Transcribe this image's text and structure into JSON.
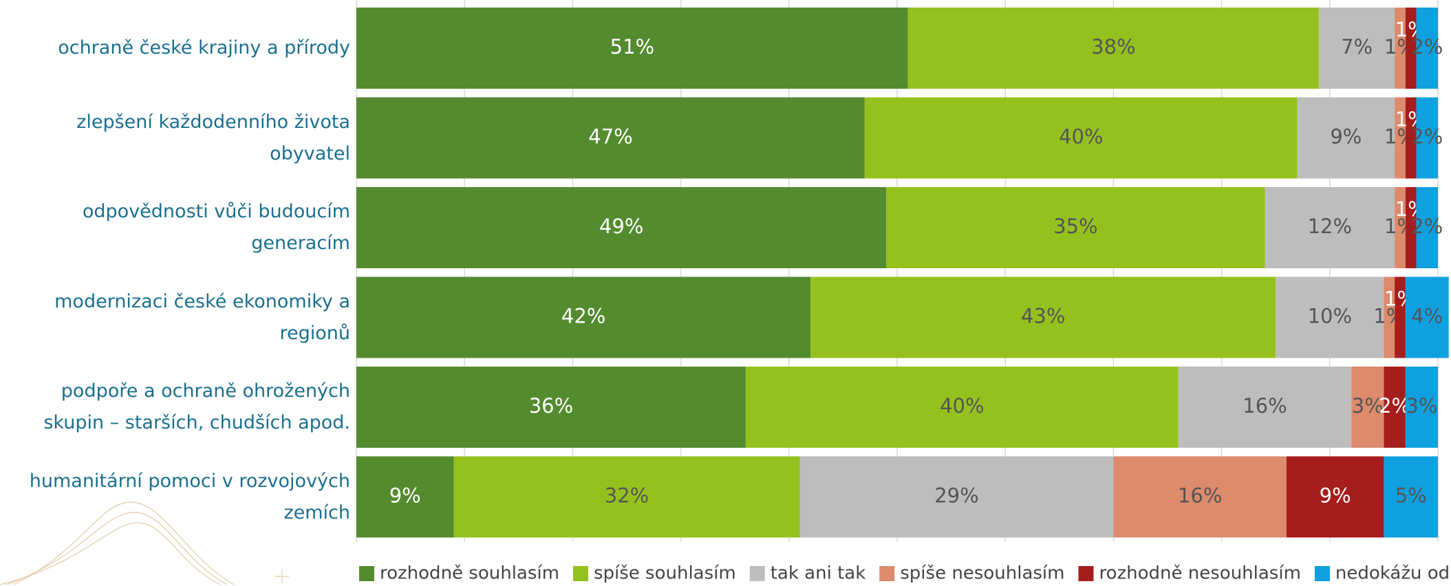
{
  "chart_data": {
    "type": "stacked-barh",
    "categories": [
      "ochraně české krajiny a přírody",
      "zlepšení každodenního života obyvatel",
      "odpovědnosti vůči budoucím generacím",
      "modernizaci české ekonomiky a regionů",
      "podpoře a ochraně ohrožených skupin – starších, chudších apod.",
      "humanitární pomoci v rozvojových zemích"
    ],
    "series": [
      {
        "name": "rozhodně souhlasím",
        "color": "#548b2f",
        "values": [
          51,
          47,
          49,
          42,
          36,
          9
        ],
        "value_labels": [
          "51%",
          "47%",
          "49%",
          "42%",
          "36%",
          "9%"
        ]
      },
      {
        "name": "spíše souhlasím",
        "color": "#95c11f",
        "values": [
          38,
          40,
          35,
          43,
          40,
          32
        ],
        "value_labels": [
          "38%",
          "40%",
          "35%",
          "43%",
          "40%",
          "32%"
        ]
      },
      {
        "name": "tak ani tak",
        "color": "#bdbdbd",
        "values": [
          7,
          9,
          12,
          10,
          16,
          29
        ],
        "value_labels": [
          "7%",
          "9%",
          "12%",
          "10%",
          "16%",
          "29%"
        ]
      },
      {
        "name": "spíše nesouhlasím",
        "color": "#dc8b6c",
        "values": [
          1,
          1,
          1,
          1,
          3,
          16
        ],
        "value_labels": [
          "1%",
          "1%",
          "1%",
          "1%",
          "3%",
          "16%"
        ]
      },
      {
        "name": "rozhodně nesouhlasím",
        "color": "#a51d1c",
        "values": [
          1,
          1,
          1,
          1,
          2,
          9
        ],
        "value_labels": [
          "1%",
          "1%",
          "1%",
          "1%",
          "2%",
          "9%"
        ]
      },
      {
        "name": "nedokážu odpovědět",
        "color": "#0fa0e0",
        "values": [
          2,
          2,
          2,
          4,
          3,
          5
        ],
        "value_labels": [
          "2%",
          "2%",
          "2%",
          "4%",
          "3%",
          "5%"
        ]
      }
    ],
    "xlim": [
      0,
      100
    ],
    "xticks": [
      0,
      10,
      20,
      30,
      40,
      50,
      60,
      70,
      80,
      90,
      100
    ],
    "grid": true,
    "legend": "bottom"
  }
}
